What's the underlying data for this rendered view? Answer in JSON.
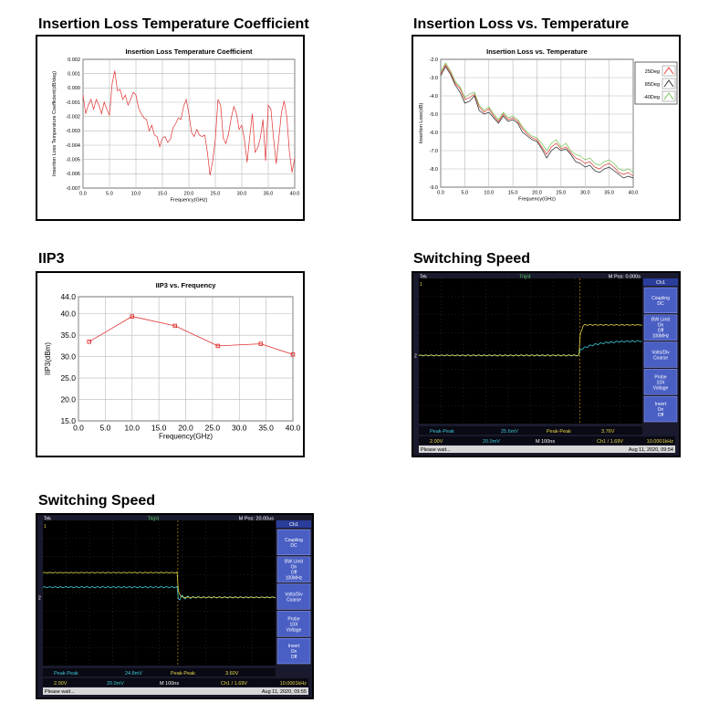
{
  "sections": {
    "il_coef_title": "Insertion Loss Temperature Coefficient",
    "il_temp_title": "Insertion Loss vs. Temperature",
    "iip3_title": "IIP3",
    "sw1_title": "Switching Speed",
    "sw2_title": "Switching Speed"
  },
  "chart_data": [
    {
      "type": "line",
      "title": "Insertion Loss Temperature Coefficient",
      "xlabel": "Frequency(GHz)",
      "ylabel": "Insertion Loss Temperature Coefficient(dB/deg)",
      "xlim": [
        0,
        40
      ],
      "ylim": [
        -0.007,
        0.002
      ],
      "xticks": [
        "0.0",
        "5.0",
        "10.0",
        "15.0",
        "20.0",
        "25.0",
        "30.0",
        "35.0",
        "40.0"
      ],
      "yticks": [
        "0.002",
        "0.001",
        "0.000",
        "-0.001",
        "-0.002",
        "-0.003",
        "-0.004",
        "-0.005",
        "-0.006",
        "-0.007"
      ],
      "grid": true,
      "colors": {
        "line": "#e03030"
      },
      "x": [
        0,
        0.5,
        1,
        1.5,
        2,
        2.5,
        3,
        3.5,
        4,
        4.5,
        5,
        5.5,
        6,
        6.5,
        7,
        7.5,
        8,
        8.5,
        9,
        9.5,
        10,
        10.5,
        11,
        11.5,
        12,
        12.5,
        13,
        13.5,
        14,
        14.5,
        15,
        15.5,
        16,
        16.5,
        17,
        17.5,
        18,
        18.5,
        19,
        19.5,
        20,
        20.5,
        21,
        21.5,
        22,
        22.5,
        23,
        23.5,
        24,
        24.5,
        25,
        25.5,
        26,
        26.5,
        27,
        27.5,
        28,
        28.5,
        29,
        29.5,
        30,
        30.5,
        31,
        31.5,
        32,
        32.5,
        33,
        33.5,
        34,
        34.5,
        35,
        35.5,
        36,
        36.5,
        37,
        37.5,
        38,
        38.5,
        39,
        39.5,
        40
      ],
      "y": [
        -0.0005,
        -0.0018,
        -0.0012,
        -0.0008,
        -0.0015,
        -0.0008,
        -0.0012,
        -0.0018,
        -0.001,
        -0.0015,
        -0.0019,
        0.0003,
        0.0012,
        -0.0002,
        -0.0001,
        -0.0008,
        -0.0005,
        -0.0012,
        -0.0008,
        -0.0003,
        -0.0005,
        -0.0014,
        -0.0018,
        -0.0021,
        -0.0022,
        -0.003,
        -0.0026,
        -0.0033,
        -0.0034,
        -0.0041,
        -0.0035,
        -0.0034,
        -0.0038,
        -0.0036,
        -0.0028,
        -0.0025,
        -0.0021,
        -0.0022,
        -0.0013,
        -0.0008,
        -0.0018,
        -0.0031,
        -0.0034,
        -0.0029,
        -0.0033,
        -0.0034,
        -0.0033,
        -0.0045,
        -0.0061,
        -0.0051,
        -0.0036,
        -0.0008,
        -0.0012,
        -0.0035,
        -0.0039,
        -0.0032,
        -0.0021,
        -0.0013,
        -0.0018,
        -0.0029,
        -0.0026,
        -0.0036,
        -0.0052,
        -0.0034,
        -0.0018,
        -0.0045,
        -0.0042,
        -0.0035,
        -0.0022,
        -0.0051,
        -0.0012,
        -0.0015,
        -0.0035,
        -0.0053,
        -0.0035,
        -0.0017,
        -0.0009,
        -0.002,
        -0.0045,
        -0.0059,
        -0.0049
      ]
    },
    {
      "type": "line",
      "title": "Insertion Loss vs. Temperature",
      "xlabel": "Frequency(GHz)",
      "ylabel": "Insertion Loss(dB)",
      "xlim": [
        0,
        40
      ],
      "ylim": [
        -9.0,
        -2.0
      ],
      "xticks": [
        "0.0",
        "5.0",
        "10.0",
        "15.0",
        "20.0",
        "25.0",
        "30.0",
        "35.0",
        "40.0"
      ],
      "yticks": [
        "-2.0",
        "-3.0",
        "-4.0",
        "-5.0",
        "-6.0",
        "-7.0",
        "-8.0",
        "-9.0"
      ],
      "grid": true,
      "legend": "right",
      "x": [
        0,
        1,
        2,
        3,
        4,
        5,
        6,
        7,
        8,
        9,
        10,
        11,
        12,
        13,
        14,
        15,
        16,
        17,
        18,
        19,
        20,
        21,
        22,
        23,
        24,
        25,
        26,
        27,
        28,
        29,
        30,
        31,
        32,
        33,
        34,
        35,
        36,
        37,
        38,
        39,
        40
      ],
      "series": [
        {
          "name": "25Deg",
          "color": "#e03030",
          "values": [
            -2.8,
            -2.3,
            -2.7,
            -3.3,
            -3.6,
            -4.2,
            -4.1,
            -3.9,
            -4.6,
            -4.9,
            -4.7,
            -5.1,
            -5.4,
            -5.0,
            -5.3,
            -5.2,
            -5.4,
            -5.8,
            -6.1,
            -6.3,
            -6.4,
            -6.8,
            -7.2,
            -6.8,
            -6.6,
            -6.9,
            -6.8,
            -7.1,
            -7.4,
            -7.5,
            -7.7,
            -7.6,
            -7.9,
            -8.0,
            -7.8,
            -7.7,
            -7.9,
            -8.2,
            -8.3,
            -8.2,
            -8.4
          ]
        },
        {
          "name": "85Deg",
          "color": "#222222",
          "values": [
            -2.9,
            -2.4,
            -2.8,
            -3.4,
            -3.8,
            -4.4,
            -4.3,
            -4.0,
            -4.8,
            -5.0,
            -4.9,
            -5.2,
            -5.5,
            -5.1,
            -5.4,
            -5.3,
            -5.5,
            -6.0,
            -6.2,
            -6.4,
            -6.5,
            -6.9,
            -7.4,
            -7.0,
            -6.8,
            -7.0,
            -6.9,
            -7.2,
            -7.6,
            -7.7,
            -7.9,
            -7.8,
            -8.1,
            -8.2,
            -8.0,
            -7.9,
            -8.1,
            -8.3,
            -8.5,
            -8.4,
            -8.5
          ]
        },
        {
          "name": "-40Deg",
          "color": "#6ec04a",
          "values": [
            -2.7,
            -2.2,
            -2.6,
            -3.2,
            -3.5,
            -4.1,
            -3.9,
            -3.8,
            -4.5,
            -4.8,
            -4.6,
            -5.0,
            -5.3,
            -4.9,
            -5.2,
            -5.1,
            -5.3,
            -5.7,
            -6.0,
            -6.2,
            -6.3,
            -6.6,
            -7.0,
            -6.6,
            -6.4,
            -6.8,
            -6.6,
            -7.0,
            -7.2,
            -7.3,
            -7.5,
            -7.4,
            -7.7,
            -7.8,
            -7.6,
            -7.5,
            -7.7,
            -8.0,
            -8.1,
            -8.0,
            -8.2
          ]
        }
      ]
    },
    {
      "type": "line",
      "title": "IIP3 vs. Frequency",
      "xlabel": "Frequency(GHz)",
      "ylabel": "IIP3(dBm)",
      "xlim": [
        0,
        40
      ],
      "ylim": [
        15,
        44
      ],
      "xticks": [
        "0.0",
        "5.0",
        "10.0",
        "15.0",
        "20.0",
        "25.0",
        "30.0",
        "35.0",
        "40.0"
      ],
      "yticks": [
        "44.0",
        "40.0",
        "35.0",
        "30.0",
        "25.0",
        "20.0",
        "15.0"
      ],
      "grid": true,
      "colors": {
        "line": "#e03030"
      },
      "x": [
        2,
        10,
        18,
        26,
        34,
        40
      ],
      "y": [
        33.5,
        39.4,
        37.2,
        32.5,
        33.0,
        30.5
      ]
    }
  ],
  "scope1": {
    "top_label": "Tek",
    "trig_status": "Trig'd",
    "mpos": "M Pos: 0.000s",
    "menu_header": "Ch1",
    "menu": [
      {
        "l1": "Coupling",
        "l2": "DC",
        "l3": ""
      },
      {
        "l1": "BW Limit",
        "l2": "On",
        "l3": "Off",
        "l4": "100MHz"
      },
      {
        "l1": "Volts/Div",
        "l2": "Coarse",
        "l3": ""
      },
      {
        "l1": "Probe",
        "l2": "10X",
        "l3": "Voltage"
      },
      {
        "l1": "Invert",
        "l2": "On",
        "l3": "Off"
      }
    ],
    "ch2_pp_label": "Peak-Peak",
    "ch2_pp": "25.6mV",
    "ch1_pp_label": "Peak-Peak",
    "ch1_pp": "3.76V",
    "ch1_scale": "2.00V",
    "ch2_scale": "20.0mV",
    "timebase": "M 100ns",
    "trigger": "Ch1 / 1.69V",
    "freq": "10.0001kHz",
    "status": "Please wait...",
    "date": "Aug 11, 2020, 09:54",
    "ch1_marker": "1",
    "ch2_marker": "2",
    "colors": {
      "ch1": "#e8d84a",
      "ch2": "#3bc8d6",
      "bg": "#000000",
      "menu": "#2a3d9a"
    }
  },
  "scope2": {
    "top_label": "Tek",
    "trig_status": "Trig'd",
    "mpos": "M Pos: 20.00us",
    "menu_header": "Ch1",
    "menu": [
      {
        "l1": "Coupling",
        "l2": "DC",
        "l3": ""
      },
      {
        "l1": "BW Limit",
        "l2": "On",
        "l3": "Off",
        "l4": "100MHz"
      },
      {
        "l1": "Volts/Div",
        "l2": "Coarse",
        "l3": ""
      },
      {
        "l1": "Probe",
        "l2": "10X",
        "l3": "Voltage"
      },
      {
        "l1": "Invert",
        "l2": "On",
        "l3": "Off"
      }
    ],
    "ch2_pp_label": "Peak-Peak",
    "ch2_pp": "24.8mV",
    "ch1_pp_label": "Peak-Peak",
    "ch1_pp": "3.60V",
    "ch1_scale": "2.00V",
    "ch2_scale": "20.0mV",
    "timebase": "M 100ns",
    "trigger": "Ch1 / 1.69V",
    "freq": "10.0001kHz",
    "status": "Please wait...",
    "date": "Aug 11, 2020, 09:55",
    "ch1_marker": "1",
    "ch2_marker": "2",
    "colors": {
      "ch1": "#e8d84a",
      "ch2": "#3bc8d6",
      "bg": "#000000",
      "menu": "#2a3d9a"
    }
  }
}
